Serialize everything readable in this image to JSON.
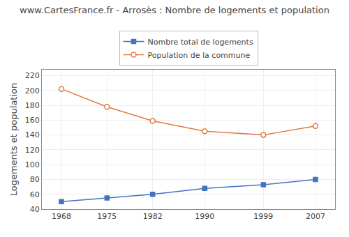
{
  "chart_data": {
    "type": "line",
    "title": "www.CartesFrance.fr - Arrosès : Nombre de logements et population",
    "y_label": "Logements et population",
    "x": [
      1968,
      1975,
      1982,
      1990,
      1999,
      2007
    ],
    "series": [
      {
        "name": "Population de la commune",
        "color": "#e07840",
        "marker": "circle",
        "values": [
          202,
          178,
          159,
          145,
          140,
          152
        ]
      },
      {
        "name": "Nombre total de logements",
        "color": "#4472c4",
        "marker": "square",
        "values": [
          50,
          55,
          60,
          68,
          73,
          80
        ]
      }
    ],
    "xlim": [
      1965,
      2010
    ],
    "xticks": [
      1968,
      1975,
      1982,
      1990,
      1999,
      2007
    ],
    "ylim": [
      40,
      228
    ],
    "yticks": [
      40,
      60,
      80,
      100,
      120,
      140,
      160,
      180,
      200,
      220
    ],
    "grid": true,
    "legend": "top"
  }
}
